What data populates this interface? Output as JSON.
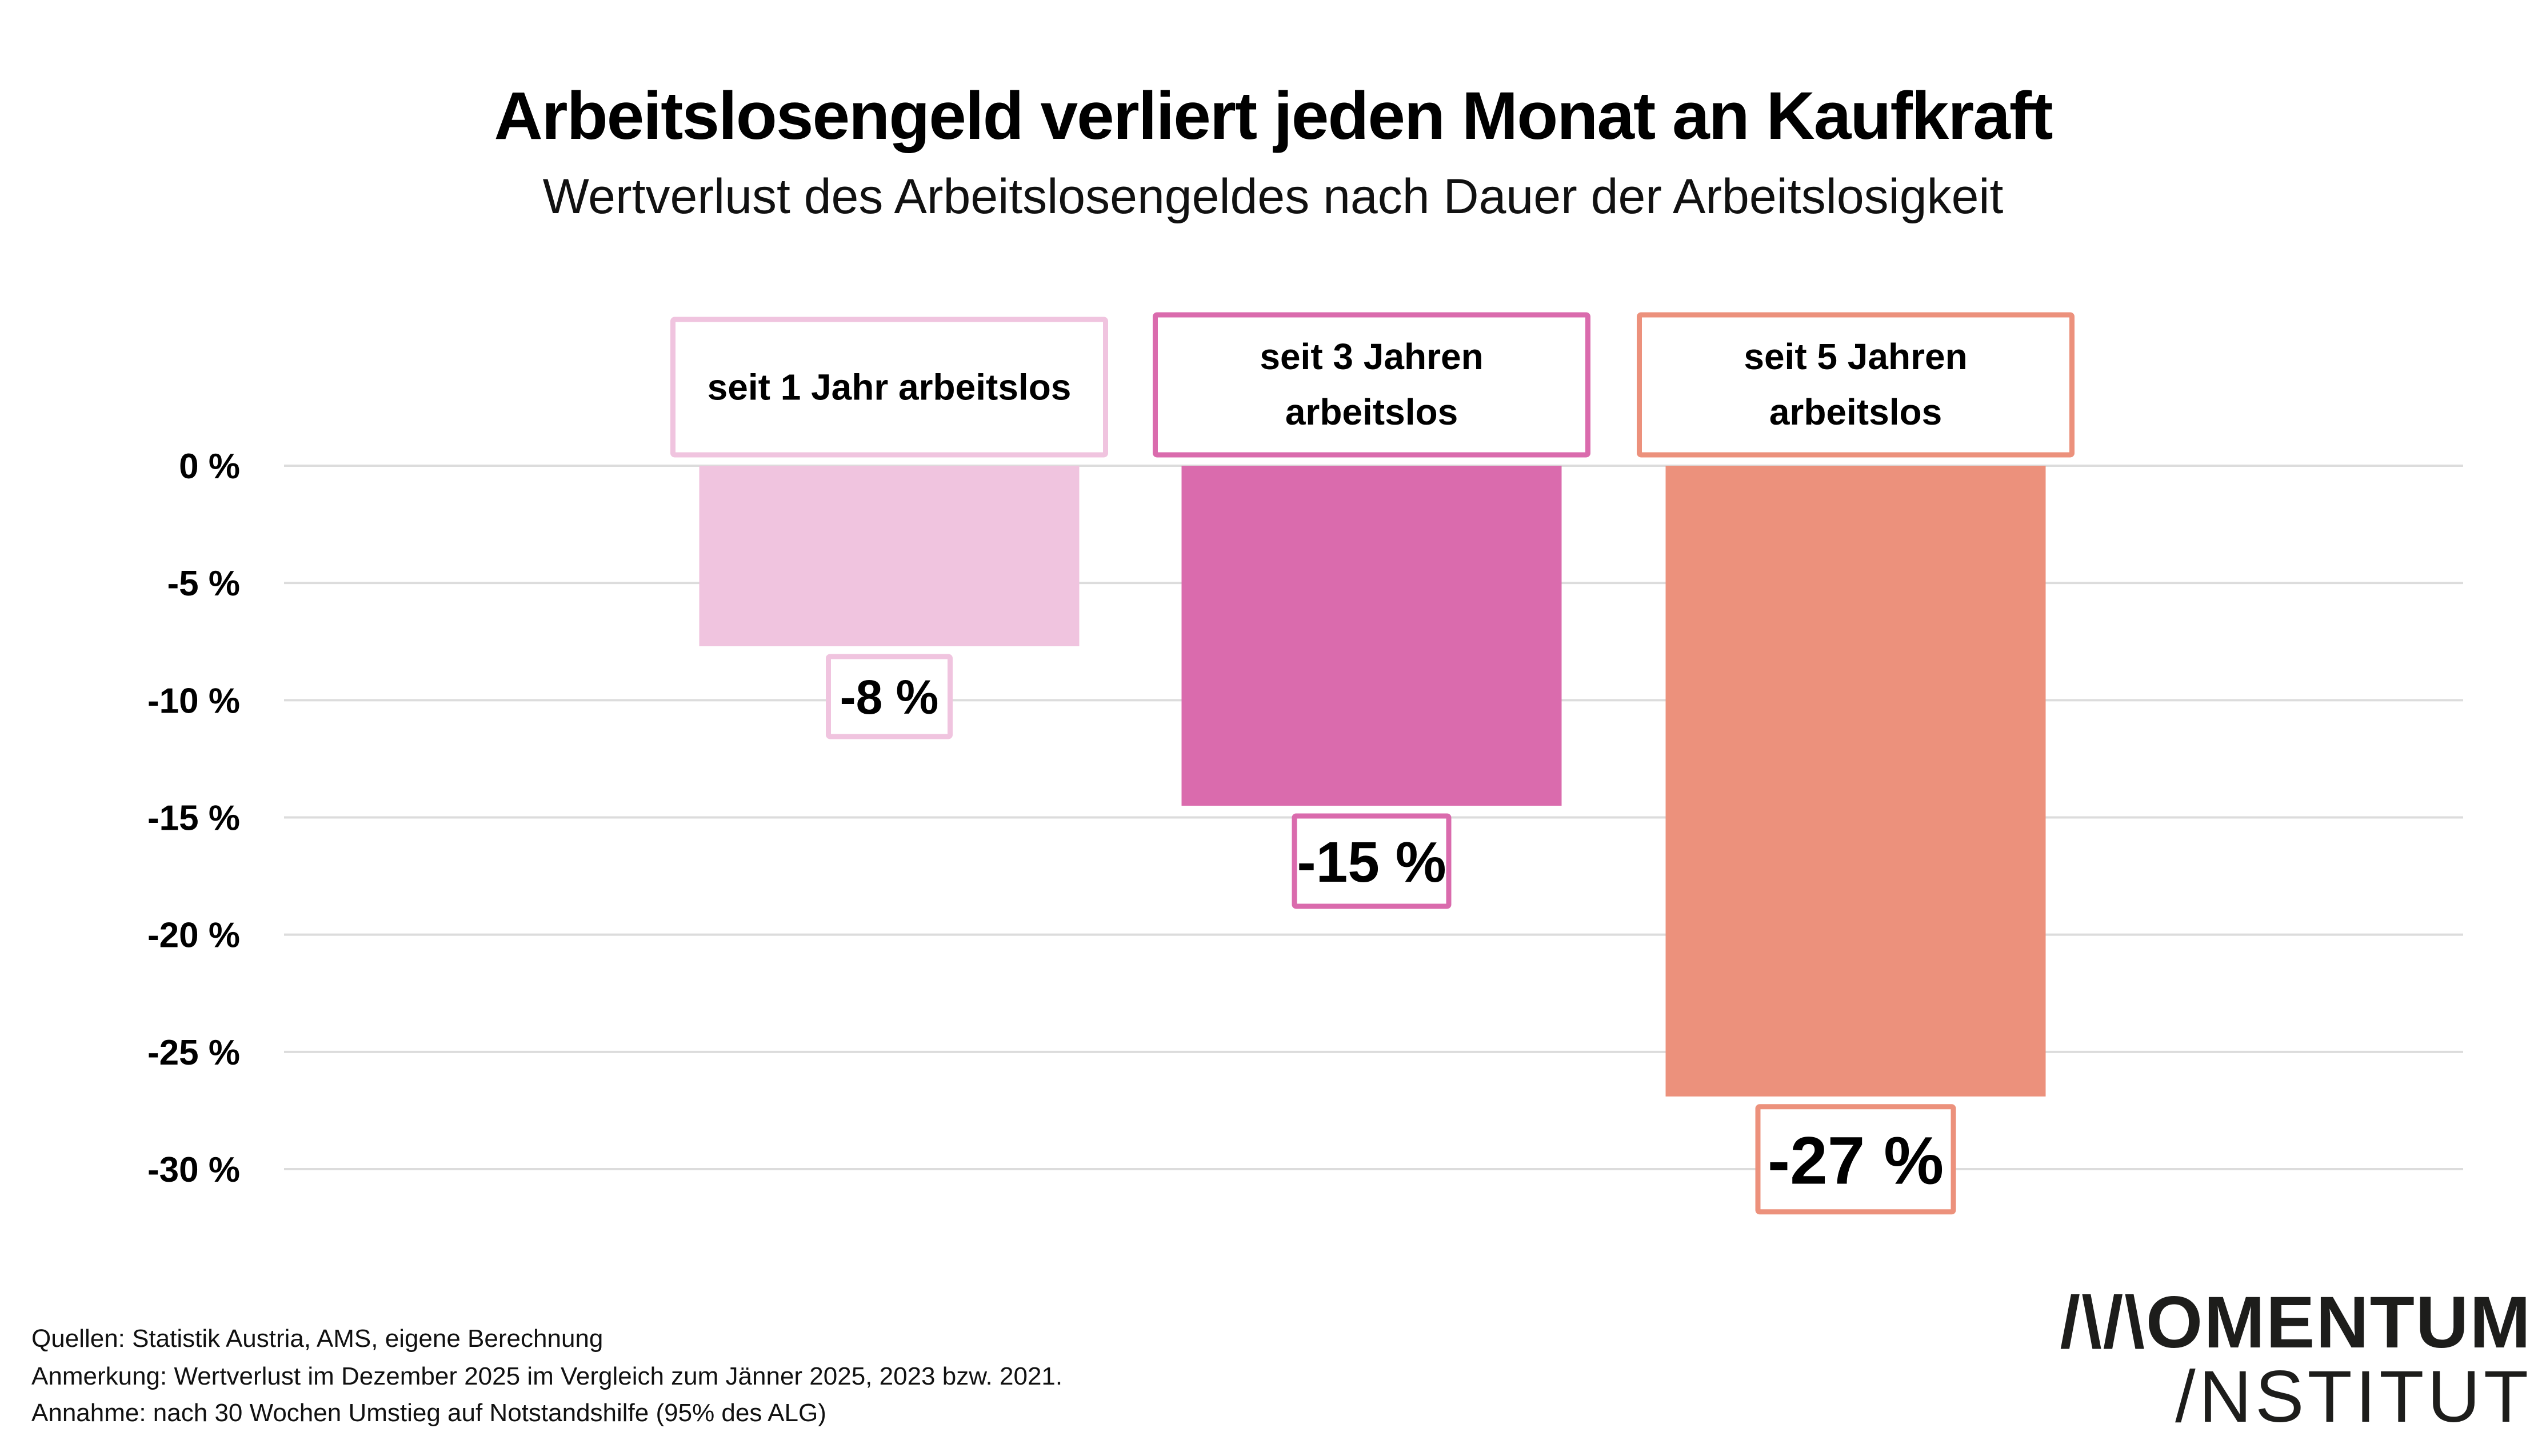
{
  "header": {
    "title": "Arbeitslosengeld verliert jeden Monat an Kaufkraft",
    "subtitle": "Wertverlust des Arbeitslosengeldes nach Dauer der Arbeitslosigkeit"
  },
  "chart_data": {
    "type": "bar",
    "title": "Arbeitslosengeld verliert jeden Monat an Kaufkraft",
    "subtitle": "Wertverlust des Arbeitslosengeldes nach Dauer der Arbeitslosigkeit",
    "xlabel": "",
    "ylabel": "",
    "categories": [
      [
        "seit 1 Jahr arbeitslos"
      ],
      [
        "seit 3 Jahren",
        "arbeitslos"
      ],
      [
        "seit 5 Jahren",
        "arbeitslos"
      ]
    ],
    "values": [
      -7.7,
      -14.5,
      -26.9
    ],
    "data_labels": [
      "-8 %",
      "-15 %",
      "-27 %"
    ],
    "colors": [
      "#F0C4DF",
      "#DA6BAD",
      "#EC917C"
    ],
    "ylim": [
      -30,
      0
    ],
    "yticks": [
      0,
      -5,
      -10,
      -15,
      -20,
      -25,
      -30
    ],
    "ytick_labels": [
      "0 %",
      "-5 %",
      "-10 %",
      "-15 %",
      "-20 %",
      "-25 %",
      "-30 %"
    ],
    "grid": true,
    "legend": "none"
  },
  "footer": {
    "sources": "Quellen: Statistik Austria, AMS, eigene Berechnung",
    "note": "Anmerkung: Wertverlust im Dezember 2025 im Vergleich zum Jänner 2025, 2023 bzw. 2021.",
    "assumption": "Annahme: nach 30 Wochen Umstieg auf Notstandshilfe (95% des ALG)"
  },
  "logo": {
    "line1": "/\\/\\OMENTUM",
    "line2": "/NSTITUT"
  }
}
